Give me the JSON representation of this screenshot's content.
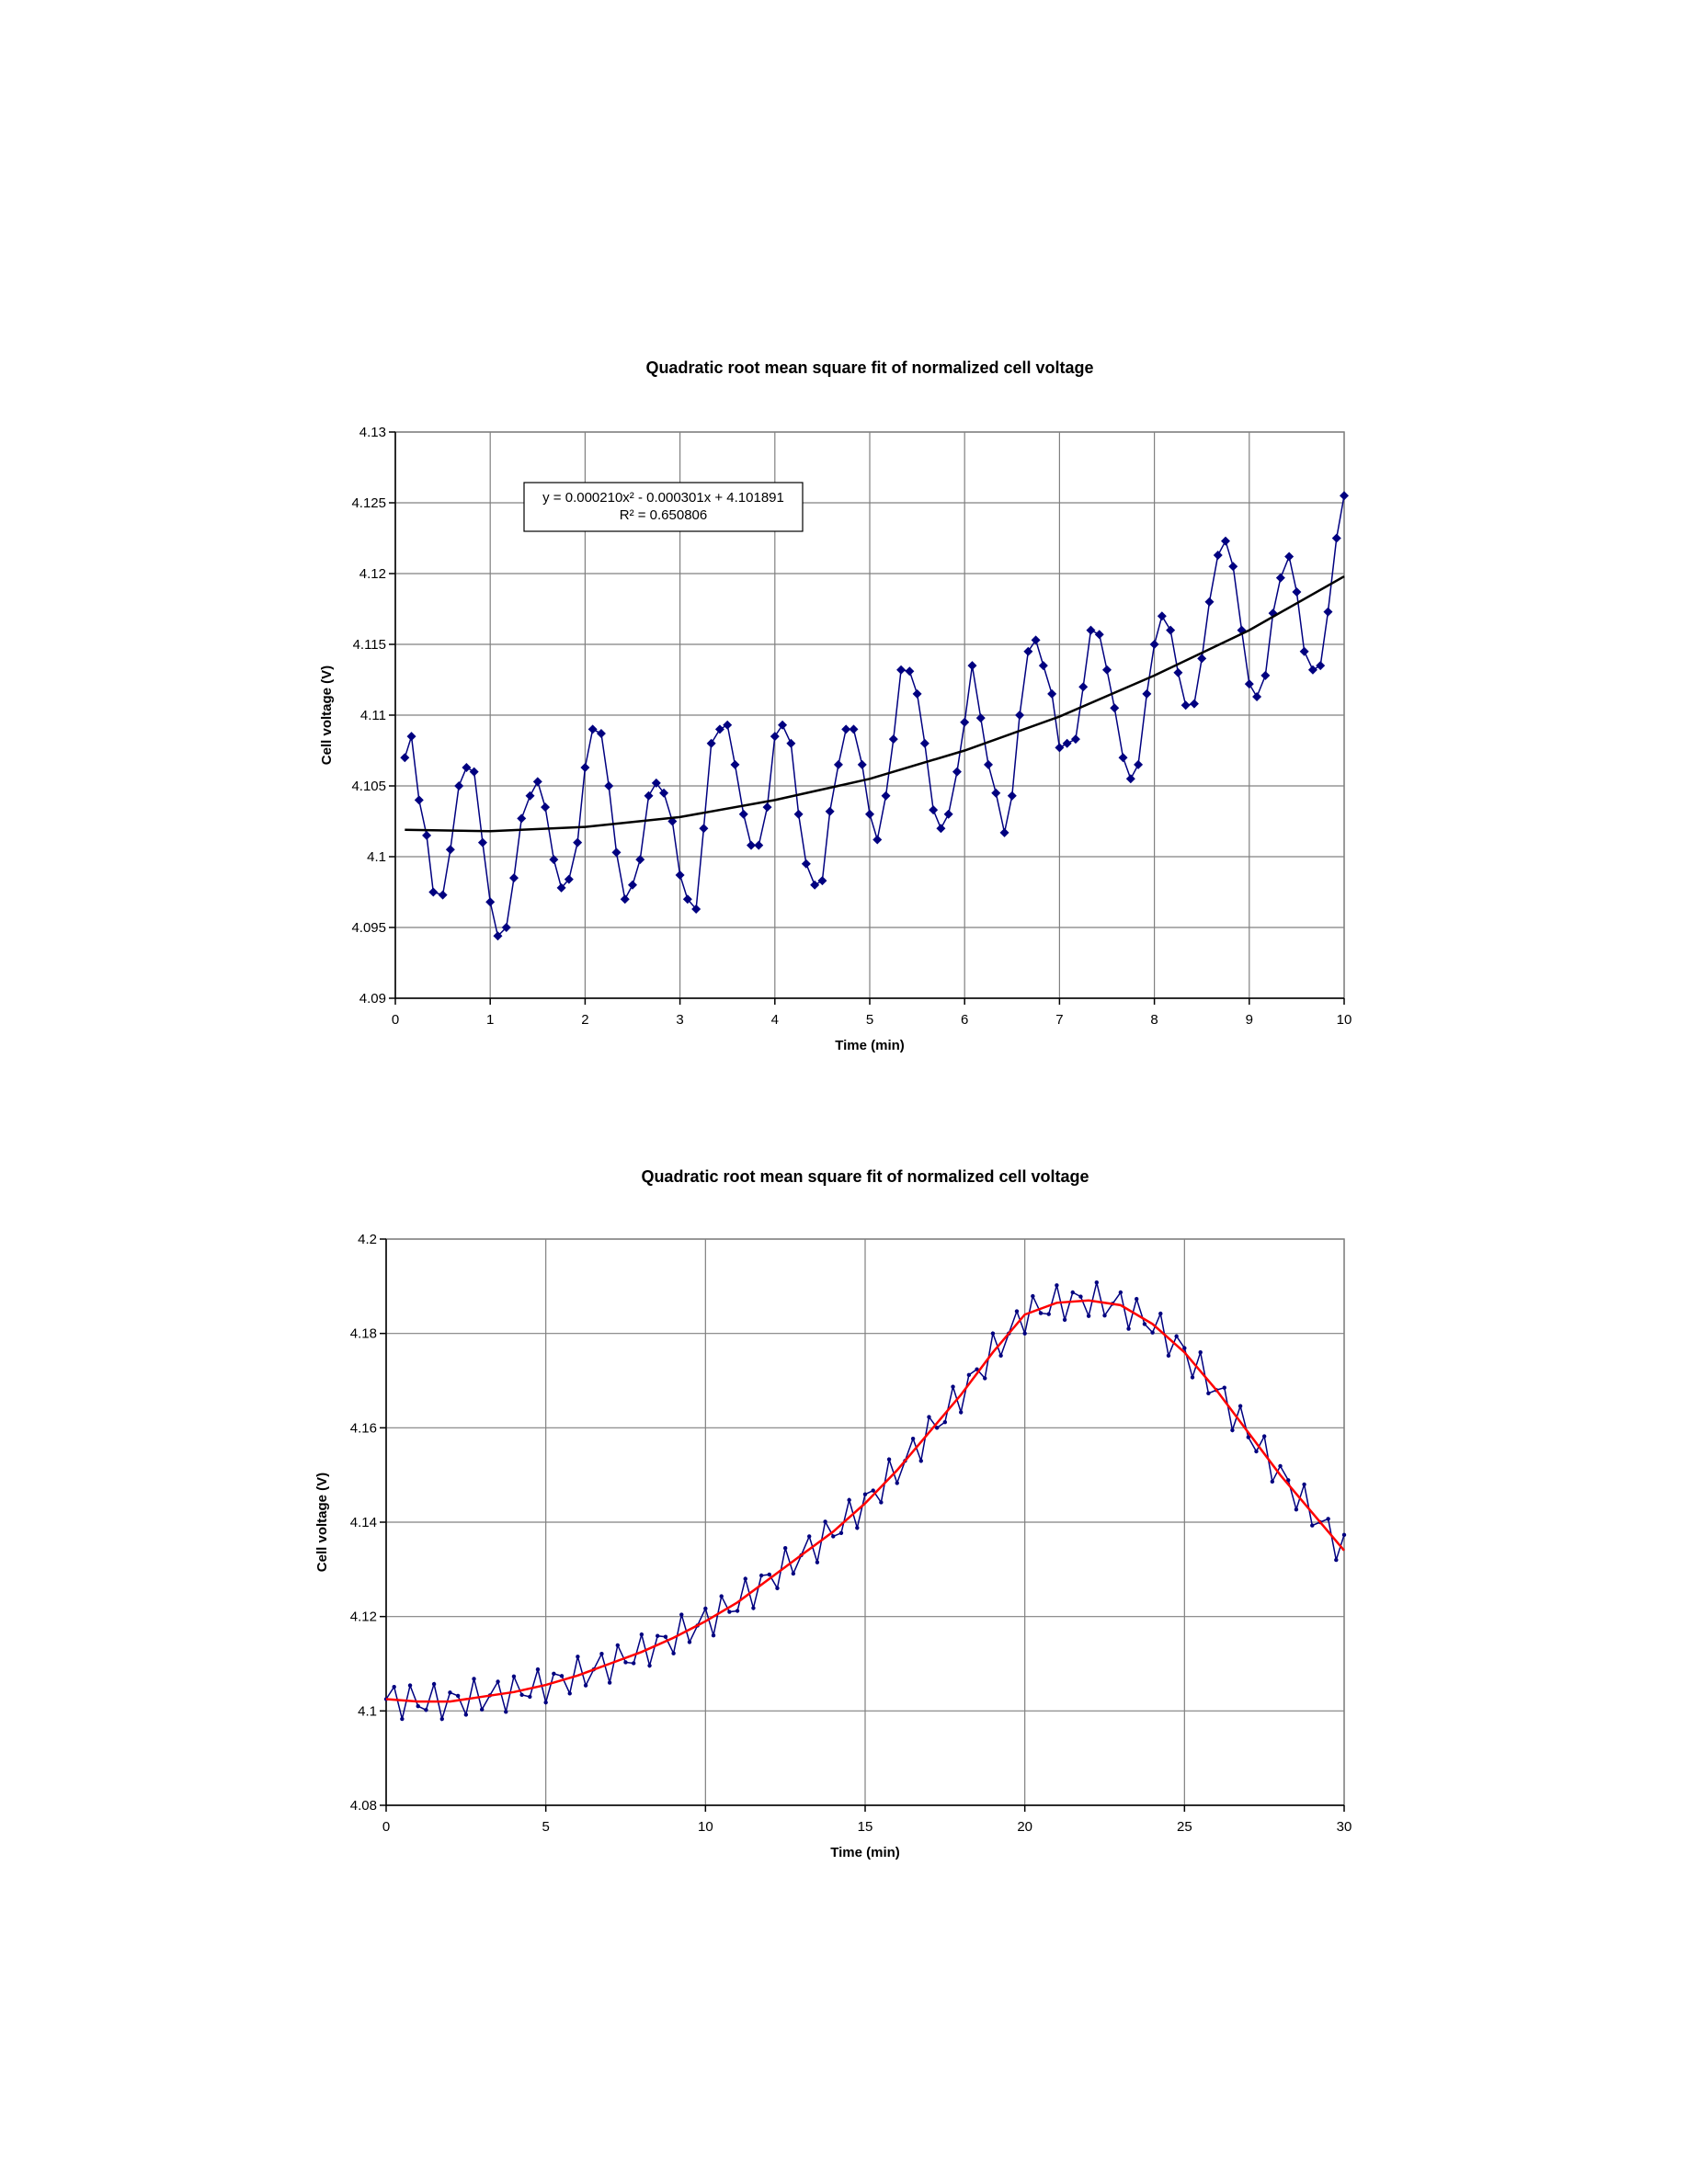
{
  "chart_data": [
    {
      "type": "line",
      "title": "Quadratic root mean square fit of normalized cell voltage",
      "xlabel": "Time (min)",
      "ylabel": "Cell voltage (V)",
      "xlim": [
        0,
        10
      ],
      "ylim": [
        4.09,
        4.13
      ],
      "xticks": [
        0,
        1,
        2,
        3,
        4,
        5,
        6,
        7,
        8,
        9,
        10
      ],
      "yticks": [
        4.09,
        4.095,
        4.1,
        4.105,
        4.11,
        4.115,
        4.12,
        4.125,
        4.13
      ],
      "grid": true,
      "annotation": [
        "y = 0.000210x² - 0.000301x + 4.101891",
        "R² = 0.650806"
      ],
      "series": [
        {
          "color": "#000080",
          "marker": "diamond",
          "x": [
            0.1,
            0.17,
            0.25,
            0.33,
            0.4,
            0.5,
            0.58,
            0.67,
            0.75,
            0.83,
            0.92,
            1.0,
            1.08,
            1.17,
            1.25,
            1.33,
            1.42,
            1.5,
            1.58,
            1.67,
            1.75,
            1.83,
            1.92,
            2.0,
            2.08,
            2.17,
            2.25,
            2.33,
            2.42,
            2.5,
            2.58,
            2.67,
            2.75,
            2.83,
            2.92,
            3.0,
            3.08,
            3.17,
            3.25,
            3.33,
            3.42,
            3.5,
            3.58,
            3.67,
            3.75,
            3.83,
            3.92,
            4.0,
            4.08,
            4.17,
            4.25,
            4.33,
            4.42,
            4.5,
            4.58,
            4.67,
            4.75,
            4.83,
            4.92,
            5.0,
            5.08,
            5.17,
            5.25,
            5.33,
            5.42,
            5.5,
            5.58,
            5.67,
            5.75,
            5.83,
            5.92,
            6.0,
            6.08,
            6.17,
            6.25,
            6.33,
            6.42,
            6.5,
            6.58,
            6.67,
            6.75,
            6.83,
            6.92,
            7.0,
            7.08,
            7.17,
            7.25,
            7.33,
            7.42,
            7.5,
            7.58,
            7.67,
            7.75,
            7.83,
            7.92,
            8.0,
            8.08,
            8.17,
            8.25,
            8.33,
            8.42,
            8.5,
            8.58,
            8.67,
            8.75,
            8.83,
            8.92,
            9.0,
            9.08,
            9.17,
            9.25,
            9.33,
            9.42,
            9.5,
            9.58,
            9.67,
            9.75,
            9.83,
            9.92,
            10.0
          ],
          "values": [
            4.107,
            4.1085,
            4.104,
            4.1015,
            4.0975,
            4.0973,
            4.1005,
            4.105,
            4.1063,
            4.106,
            4.101,
            4.0968,
            4.0944,
            4.095,
            4.0985,
            4.1027,
            4.1043,
            4.1053,
            4.1035,
            4.0998,
            4.0978,
            4.0984,
            4.101,
            4.1063,
            4.109,
            4.1087,
            4.105,
            4.1003,
            4.097,
            4.098,
            4.0998,
            4.1043,
            4.1052,
            4.1045,
            4.1025,
            4.0987,
            4.097,
            4.0963,
            4.102,
            4.108,
            4.109,
            4.1093,
            4.1065,
            4.103,
            4.1008,
            4.1008,
            4.1035,
            4.1085,
            4.1093,
            4.108,
            4.103,
            4.0995,
            4.098,
            4.0983,
            4.1032,
            4.1065,
            4.109,
            4.109,
            4.1065,
            4.103,
            4.1012,
            4.1043,
            4.1083,
            4.1132,
            4.1131,
            4.1115,
            4.108,
            4.1033,
            4.102,
            4.103,
            4.106,
            4.1095,
            4.1135,
            4.1098,
            4.1065,
            4.1045,
            4.1017,
            4.1043,
            4.11,
            4.1145,
            4.1153,
            4.1135,
            4.1115,
            4.1077,
            4.108,
            4.1083,
            4.112,
            4.116,
            4.1157,
            4.1132,
            4.1105,
            4.107,
            4.1055,
            4.1065,
            4.1115,
            4.115,
            4.117,
            4.116,
            4.113,
            4.1107,
            4.1108,
            4.114,
            4.118,
            4.1213,
            4.1223,
            4.1205,
            4.116,
            4.1122,
            4.1113,
            4.1128,
            4.1172,
            4.1197,
            4.1212,
            4.1187,
            4.1145,
            4.1132,
            4.1135,
            4.1173,
            4.1225,
            4.1255
          ]
        },
        {
          "color": "#000000",
          "marker": "none",
          "x": [
            0.1,
            1,
            2,
            3,
            4,
            5,
            6,
            7,
            8,
            9,
            10
          ],
          "values": [
            4.1019,
            4.1018,
            4.1021,
            4.1028,
            4.104,
            4.1055,
            4.1075,
            4.1099,
            4.1128,
            4.116,
            4.1198
          ]
        }
      ]
    },
    {
      "type": "line",
      "title": "Quadratic root mean square fit of normalized cell voltage",
      "xlabel": "Time (min)",
      "ylabel": "Cell voltage (V)",
      "xlim": [
        0,
        30
      ],
      "ylim": [
        4.08,
        4.2
      ],
      "xticks": [
        0,
        5,
        10,
        15,
        20,
        25,
        30
      ],
      "yticks": [
        4.08,
        4.1,
        4.12,
        4.14,
        4.16,
        4.18,
        4.2
      ],
      "grid": true,
      "series": [
        {
          "color": "#000080",
          "marker": "dot",
          "x": [
            0,
            0.25,
            0.5,
            0.75,
            1,
            1.25,
            1.5,
            1.75,
            2,
            2.25,
            2.5,
            2.75,
            3,
            3.25,
            3.5,
            3.75,
            4,
            4.25,
            4.5,
            4.75,
            5,
            5.25,
            5.5,
            5.75,
            6,
            6.25,
            6.5,
            6.75,
            7,
            7.25,
            7.5,
            7.75,
            8,
            8.25,
            8.5,
            8.75,
            9,
            9.25,
            9.5,
            9.75,
            10,
            10.25,
            10.5,
            10.75,
            11,
            11.25,
            11.5,
            11.75,
            12,
            12.25,
            12.5,
            12.75,
            13,
            13.25,
            13.5,
            13.75,
            14,
            14.25,
            14.5,
            14.75,
            15,
            15.25,
            15.5,
            15.75,
            16,
            16.25,
            16.5,
            16.75,
            17,
            17.25,
            17.5,
            17.75,
            18,
            18.25,
            18.5,
            18.75,
            19,
            19.25,
            19.5,
            19.75,
            20,
            20.25,
            20.5,
            20.75,
            21,
            21.25,
            21.5,
            21.75,
            22,
            22.25,
            22.5,
            22.75,
            23,
            23.25,
            23.5,
            23.75,
            24,
            24.25,
            24.5,
            24.75,
            25,
            25.25,
            25.5,
            25.75,
            26,
            26.25,
            26.5,
            26.75,
            27,
            27.25,
            27.5,
            27.75,
            28,
            28.25,
            28.5,
            28.75,
            29,
            29.25,
            29.5,
            29.75,
            30
          ],
          "values": [
            4.1025,
            4.1051,
            4.0983,
            4.1054,
            4.101,
            4.1002,
            4.1057,
            4.0983,
            4.1039,
            4.1032,
            4.0992,
            4.1068,
            4.1003,
            4.1033,
            4.1062,
            4.0998,
            4.1073,
            4.1034,
            4.103,
            4.1088,
            4.1018,
            4.1079,
            4.1074,
            4.1037,
            4.1115,
            4.1054,
            4.1088,
            4.1121,
            4.106,
            4.1139,
            4.1103,
            4.1101,
            4.1162,
            4.1096,
            4.1159,
            4.1157,
            4.1122,
            4.1204,
            4.1146,
            4.1181,
            4.1217,
            4.116,
            4.1243,
            4.121,
            4.1212,
            4.128,
            4.1218,
            4.1287,
            4.1289,
            4.126,
            4.1345,
            4.1291,
            4.133,
            4.137,
            4.1315,
            4.1401,
            4.137,
            4.1377,
            4.1447,
            4.1388,
            4.1459,
            4.1467,
            4.1442,
            4.1533,
            4.1483,
            4.153,
            4.1577,
            4.153,
            4.1623,
            4.16,
            4.1612,
            4.1687,
            4.1633,
            4.1712,
            4.1724,
            4.1705,
            4.18,
            4.1753,
            4.18,
            4.1847,
            4.18,
            4.1879,
            4.1843,
            4.1841,
            4.1902,
            4.1829,
            4.1887,
            4.1878,
            4.1837,
            4.1908,
            4.1838,
            4.1863,
            4.1887,
            4.181,
            4.1873,
            4.182,
            4.1802,
            4.1842,
            4.1753,
            4.1794,
            4.1769,
            4.1707,
            4.176,
            4.1673,
            4.168,
            4.1685,
            4.1595,
            4.1646,
            4.158,
            4.155,
            4.1582,
            4.1486,
            4.1519,
            4.1489,
            4.1427,
            4.148,
            4.1393,
            4.14,
            4.1407,
            4.132,
            4.1373
          ]
        },
        {
          "color": "#ff0000",
          "marker": "none",
          "x": [
            0,
            1,
            2,
            3,
            4,
            5,
            6,
            7,
            8,
            9,
            10,
            11,
            12,
            13,
            14,
            15,
            16,
            17,
            18,
            19,
            20,
            21,
            22,
            23,
            24,
            25,
            26,
            27,
            28,
            29,
            30
          ],
          "values": [
            4.1025,
            4.102,
            4.102,
            4.103,
            4.104,
            4.1055,
            4.1075,
            4.11,
            4.1125,
            4.1155,
            4.119,
            4.123,
            4.128,
            4.133,
            4.138,
            4.144,
            4.151,
            4.159,
            4.167,
            4.176,
            4.184,
            4.1865,
            4.187,
            4.186,
            4.182,
            4.176,
            4.168,
            4.159,
            4.15,
            4.142,
            4.134
          ]
        }
      ]
    }
  ]
}
